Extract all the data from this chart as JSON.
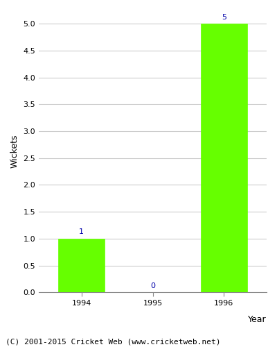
{
  "years": [
    "1994",
    "1995",
    "1996"
  ],
  "values": [
    1,
    0,
    5
  ],
  "bar_color": "#66ff00",
  "bar_edgecolor": "#66ff00",
  "xlabel": "Year",
  "ylabel": "Wickets",
  "ylim": [
    0,
    5.25
  ],
  "yticks": [
    0.0,
    0.5,
    1.0,
    1.5,
    2.0,
    2.5,
    3.0,
    3.5,
    4.0,
    4.5,
    5.0
  ],
  "label_color": "#0000aa",
  "label_fontsize": 8,
  "footer_text": "(C) 2001-2015 Cricket Web (www.cricketweb.net)",
  "footer_fontsize": 8,
  "grid_color": "#cccccc",
  "axis_label_fontsize": 9,
  "tick_fontsize": 8
}
